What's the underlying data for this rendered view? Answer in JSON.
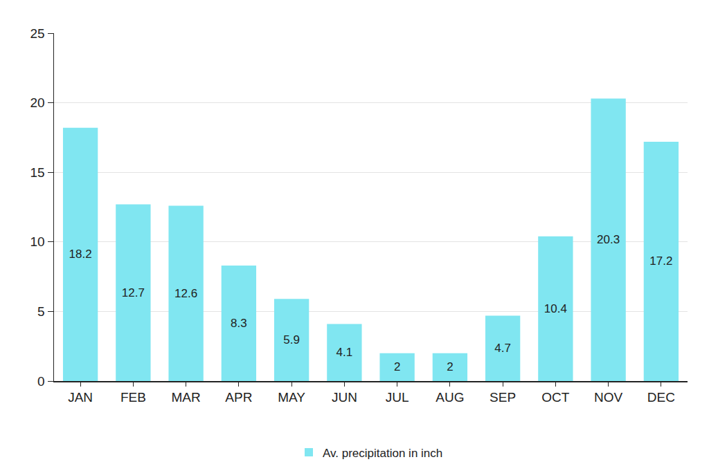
{
  "chart_data": {
    "type": "bar",
    "categories": [
      "JAN",
      "FEB",
      "MAR",
      "APR",
      "MAY",
      "JUN",
      "JUL",
      "AUG",
      "SEP",
      "OCT",
      "NOV",
      "DEC"
    ],
    "series": [
      {
        "name": "Av. precipitation in inch",
        "color": "#80e6f1",
        "values": [
          18.2,
          12.7,
          12.6,
          8.3,
          5.9,
          4.1,
          2,
          2,
          4.7,
          10.4,
          20.3,
          17.2
        ]
      }
    ],
    "ylim": [
      0,
      25
    ],
    "yticks": [
      0,
      5,
      10,
      15,
      20,
      25
    ],
    "grid": true,
    "legend": "bottom",
    "data_labels": true
  }
}
